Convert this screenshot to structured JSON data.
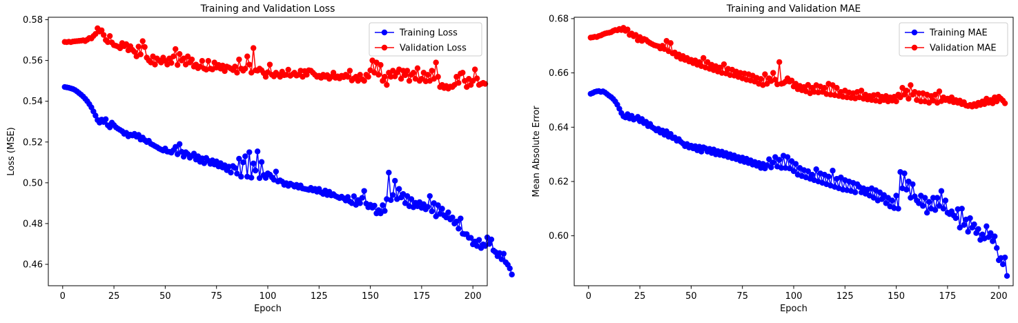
{
  "colors": {
    "train": "#0000ff",
    "val": "#ff0000",
    "axis": "#000000"
  },
  "chart_data": [
    {
      "type": "line",
      "title": "Training and Validation Loss",
      "xlabel": "Epoch",
      "ylabel": "Loss (MSE)",
      "xlim": [
        -7,
        207
      ],
      "ylim": [
        0.4495,
        0.5812
      ],
      "xticks": [
        0,
        25,
        50,
        75,
        100,
        125,
        150,
        175,
        200
      ],
      "xtick_labels": [
        "0",
        "25",
        "50",
        "75",
        "100",
        "125",
        "150",
        "175",
        "200"
      ],
      "yticks": [
        0.46,
        0.48,
        0.5,
        0.52,
        0.54,
        0.56,
        0.58
      ],
      "ytick_labels": [
        "0.46",
        "0.48",
        "0.50",
        "0.52",
        "0.54",
        "0.56",
        "0.58"
      ],
      "grid": false,
      "legend_position": "top-right",
      "series": [
        {
          "name": "Training Loss",
          "color": "#0000ff",
          "x_start": 1,
          "y": [
            0.547,
            0.5468,
            0.5466,
            0.5463,
            0.546,
            0.5455,
            0.5448,
            0.544,
            0.5432,
            0.5423,
            0.5412,
            0.54,
            0.5386,
            0.537,
            0.535,
            0.533,
            0.5308,
            0.5295,
            0.531,
            0.5298,
            0.5312,
            0.5282,
            0.5272,
            0.5295,
            0.5283,
            0.5272,
            0.5265,
            0.5259,
            0.5253,
            0.524,
            0.5245,
            0.5228,
            0.5236,
            0.5232,
            0.524,
            0.5226,
            0.5235,
            0.5212,
            0.5222,
            0.5209,
            0.52,
            0.5206,
            0.5191,
            0.5186,
            0.518,
            0.5175,
            0.5168,
            0.5163,
            0.5158,
            0.5168,
            0.5153,
            0.5152,
            0.5148,
            0.516,
            0.5176,
            0.514,
            0.519,
            0.5152,
            0.5128,
            0.515,
            0.5141,
            0.5123,
            0.5132,
            0.5143,
            0.5114,
            0.513,
            0.5103,
            0.512,
            0.5096,
            0.5122,
            0.5108,
            0.5093,
            0.511,
            0.509,
            0.5105,
            0.508,
            0.5096,
            0.5075,
            0.5086,
            0.5062,
            0.5079,
            0.505,
            0.5082,
            0.5073,
            0.5045,
            0.5118,
            0.503,
            0.51,
            0.513,
            0.503,
            0.515,
            0.5025,
            0.5095,
            0.506,
            0.5154,
            0.5023,
            0.5102,
            0.5038,
            0.5024,
            0.5046,
            0.504,
            0.5027,
            0.5015,
            0.5055,
            0.5006,
            0.5012,
            0.5006,
            0.499,
            0.4998,
            0.4985,
            0.4996,
            0.499,
            0.4981,
            0.499,
            0.4976,
            0.4987,
            0.4972,
            0.497,
            0.4968,
            0.4965,
            0.4975,
            0.4962,
            0.497,
            0.4956,
            0.497,
            0.4953,
            0.4945,
            0.4962,
            0.494,
            0.4956,
            0.4938,
            0.4944,
            0.4935,
            0.493,
            0.4925,
            0.4932,
            0.4924,
            0.4913,
            0.493,
            0.4908,
            0.49,
            0.4934,
            0.4892,
            0.4915,
            0.49,
            0.4926,
            0.496,
            0.4898,
            0.488,
            0.4892,
            0.4878,
            0.4888,
            0.485,
            0.4866,
            0.485,
            0.489,
            0.4862,
            0.492,
            0.505,
            0.4915,
            0.494,
            0.501,
            0.492,
            0.497,
            0.4928,
            0.4945,
            0.49,
            0.4935,
            0.4885,
            0.492,
            0.488,
            0.4902,
            0.4885,
            0.4905,
            0.4877,
            0.4895,
            0.487,
            0.4882,
            0.4935,
            0.486,
            0.49,
            0.4835,
            0.489,
            0.4848,
            0.4873,
            0.484,
            0.483,
            0.4855,
            0.482,
            0.483,
            0.48,
            0.481,
            0.4775,
            0.4825,
            0.475,
            0.4748,
            0.4748,
            0.473,
            0.473,
            0.4698,
            0.4712,
            0.469,
            0.472,
            0.468,
            0.4698,
            0.469,
            0.4732,
            0.47,
            0.4722,
            0.4668,
            0.466,
            0.464,
            0.4655,
            0.4625,
            0.4652,
            0.461,
            0.4598,
            0.458,
            0.455
          ]
        },
        {
          "name": "Validation Loss",
          "color": "#ff0000",
          "x_start": 1,
          "y": [
            0.5691,
            0.569,
            0.5692,
            0.569,
            0.5693,
            0.5694,
            0.5695,
            0.5696,
            0.5697,
            0.5699,
            0.5695,
            0.5702,
            0.571,
            0.5708,
            0.572,
            0.573,
            0.5758,
            0.5742,
            0.5748,
            0.5725,
            0.57,
            0.569,
            0.572,
            0.5688,
            0.5675,
            0.5672,
            0.5668,
            0.566,
            0.5685,
            0.567,
            0.568,
            0.565,
            0.567,
            0.5652,
            0.5642,
            0.562,
            0.5668,
            0.563,
            0.5695,
            0.5666,
            0.5614,
            0.56,
            0.559,
            0.562,
            0.558,
            0.561,
            0.56,
            0.559,
            0.5614,
            0.5598,
            0.558,
            0.561,
            0.5588,
            0.562,
            0.5656,
            0.5578,
            0.5632,
            0.56,
            0.561,
            0.558,
            0.562,
            0.559,
            0.5605,
            0.557,
            0.558,
            0.5562,
            0.557,
            0.5598,
            0.556,
            0.5555,
            0.5598,
            0.556,
            0.5556,
            0.559,
            0.5565,
            0.5578,
            0.556,
            0.5575,
            0.5548,
            0.557,
            0.5566,
            0.556,
            0.5553,
            0.557,
            0.554,
            0.5605,
            0.556,
            0.555,
            0.556,
            0.562,
            0.558,
            0.554,
            0.5661,
            0.5552,
            0.555,
            0.556,
            0.5552,
            0.5538,
            0.552,
            0.5542,
            0.558,
            0.553,
            0.5522,
            0.554,
            0.553,
            0.552,
            0.5545,
            0.5528,
            0.553,
            0.5555,
            0.5525,
            0.5532,
            0.554,
            0.5526,
            0.553,
            0.555,
            0.552,
            0.5548,
            0.553,
            0.5552,
            0.555,
            0.554,
            0.553,
            0.552,
            0.5525,
            0.5515,
            0.553,
            0.552,
            0.5528,
            0.551,
            0.552,
            0.554,
            0.5515,
            0.5522,
            0.5512,
            0.5525,
            0.5518,
            0.553,
            0.552,
            0.555,
            0.5502,
            0.5512,
            0.552,
            0.55,
            0.553,
            0.5508,
            0.55,
            0.553,
            0.552,
            0.5552,
            0.56,
            0.554,
            0.559,
            0.553,
            0.5578,
            0.55,
            0.552,
            0.548,
            0.554,
            0.552,
            0.555,
            0.5522,
            0.554,
            0.5556,
            0.551,
            0.555,
            0.5528,
            0.555,
            0.55,
            0.553,
            0.554,
            0.551,
            0.5562,
            0.55,
            0.551,
            0.554,
            0.5498,
            0.553,
            0.55,
            0.555,
            0.551,
            0.559,
            0.552,
            0.547,
            0.548,
            0.5465,
            0.5475,
            0.5462,
            0.5472,
            0.547,
            0.548,
            0.552,
            0.549,
            0.5536,
            0.554,
            0.55,
            0.547,
            0.551,
            0.548,
            0.55,
            0.5556,
            0.5512,
            0.548,
            0.5485,
            0.549,
            0.5485
          ]
        }
      ]
    },
    {
      "type": "line",
      "title": "Training and Validation MAE",
      "xlabel": "Epoch",
      "ylabel": "Mean Absolute Error",
      "xlim": [
        -7,
        207
      ],
      "ylim": [
        0.5816,
        0.6805
      ],
      "xticks": [
        0,
        25,
        50,
        75,
        100,
        125,
        150,
        175,
        200
      ],
      "xtick_labels": [
        "0",
        "25",
        "50",
        "75",
        "100",
        "125",
        "150",
        "175",
        "200"
      ],
      "yticks": [
        0.6,
        0.62,
        0.64,
        0.66,
        0.68
      ],
      "ytick_labels": [
        "0.60",
        "0.62",
        "0.64",
        "0.66",
        "0.68"
      ],
      "grid": false,
      "legend_position": "top-right",
      "series": [
        {
          "name": "Training MAE",
          "color": "#0000ff",
          "x_start": 1,
          "y": [
            0.6523,
            0.6526,
            0.653,
            0.6532,
            0.6533,
            0.653,
            0.6532,
            0.6528,
            0.6522,
            0.6516,
            0.6511,
            0.6504,
            0.6495,
            0.6483,
            0.6468,
            0.6452,
            0.644,
            0.6436,
            0.6448,
            0.6432,
            0.6442,
            0.6428,
            0.6432,
            0.6438,
            0.6422,
            0.643,
            0.6415,
            0.642,
            0.6404,
            0.6412,
            0.64,
            0.6395,
            0.6388,
            0.6394,
            0.638,
            0.6388,
            0.6372,
            0.6385,
            0.6365,
            0.6375,
            0.636,
            0.6362,
            0.635,
            0.6356,
            0.6346,
            0.634,
            0.633,
            0.6338,
            0.6325,
            0.6332,
            0.6322,
            0.633,
            0.6315,
            0.6328,
            0.631,
            0.6326,
            0.6322,
            0.631,
            0.632,
            0.6305,
            0.6318,
            0.63,
            0.6312,
            0.6298,
            0.631,
            0.6295,
            0.6305,
            0.629,
            0.63,
            0.6286,
            0.6296,
            0.6282,
            0.629,
            0.6276,
            0.6288,
            0.6272,
            0.6284,
            0.6268,
            0.6278,
            0.6262,
            0.6272,
            0.6258,
            0.6268,
            0.625,
            0.6265,
            0.6248,
            0.626,
            0.6282,
            0.6252,
            0.627,
            0.629,
            0.6255,
            0.628,
            0.625,
            0.6295,
            0.625,
            0.629,
            0.6248,
            0.6275,
            0.6238,
            0.6265,
            0.6225,
            0.625,
            0.622,
            0.6242,
            0.6215,
            0.6238,
            0.621,
            0.6225,
            0.6205,
            0.6245,
            0.62,
            0.623,
            0.6195,
            0.6225,
            0.619,
            0.6218,
            0.6185,
            0.624,
            0.618,
            0.621,
            0.6175,
            0.6215,
            0.617,
            0.6205,
            0.6168,
            0.62,
            0.6165,
            0.6195,
            0.616,
            0.619,
            0.618,
            0.616,
            0.6175,
            0.6155,
            0.617,
            0.6148,
            0.6175,
            0.614,
            0.6168,
            0.613,
            0.616,
            0.6135,
            0.615,
            0.612,
            0.614,
            0.6108,
            0.613,
            0.6102,
            0.6148,
            0.61,
            0.6235,
            0.6175,
            0.623,
            0.617,
            0.62,
            0.614,
            0.619,
            0.6145,
            0.613,
            0.612,
            0.6148,
            0.611,
            0.614,
            0.6085,
            0.6125,
            0.61,
            0.614,
            0.6095,
            0.614,
            0.611,
            0.6165,
            0.61,
            0.613,
            0.6085,
            0.608,
            0.609,
            0.6075,
            0.6065,
            0.6098,
            0.603,
            0.61,
            0.604,
            0.606,
            0.6015,
            0.6065,
            0.603,
            0.6042,
            0.601,
            0.6025,
            0.5985,
            0.6005,
            0.599,
            0.6035,
            0.5995,
            0.601,
            0.598,
            0.5998,
            0.5955,
            0.591,
            0.5918,
            0.5895,
            0.592,
            0.5852
          ]
        },
        {
          "name": "Validation MAE",
          "color": "#ff0000",
          "x_start": 1,
          "y": [
            0.673,
            0.6731,
            0.6733,
            0.6732,
            0.6736,
            0.6738,
            0.6742,
            0.6745,
            0.6747,
            0.6748,
            0.675,
            0.6755,
            0.6758,
            0.6757,
            0.6762,
            0.6758,
            0.6766,
            0.6755,
            0.676,
            0.674,
            0.6745,
            0.6735,
            0.674,
            0.672,
            0.6732,
            0.6718,
            0.6725,
            0.6722,
            0.6715,
            0.671,
            0.6706,
            0.6702,
            0.67,
            0.6698,
            0.669,
            0.67,
            0.6688,
            0.6718,
            0.668,
            0.671,
            0.6672,
            0.6675,
            0.666,
            0.6668,
            0.6652,
            0.6662,
            0.6648,
            0.6655,
            0.6642,
            0.6648,
            0.6636,
            0.6646,
            0.663,
            0.664,
            0.6625,
            0.6655,
            0.662,
            0.664,
            0.6615,
            0.663,
            0.661,
            0.6625,
            0.6605,
            0.662,
            0.66,
            0.6632,
            0.6598,
            0.6615,
            0.6592,
            0.6612,
            0.659,
            0.6605,
            0.6585,
            0.66,
            0.658,
            0.6598,
            0.6575,
            0.6595,
            0.6572,
            0.659,
            0.6568,
            0.6582,
            0.656,
            0.6578,
            0.6555,
            0.6595,
            0.656,
            0.658,
            0.657,
            0.66,
            0.6575,
            0.6558,
            0.664,
            0.656,
            0.6562,
            0.6568,
            0.658,
            0.6568,
            0.6572,
            0.655,
            0.656,
            0.654,
            0.6552,
            0.6536,
            0.6548,
            0.6532,
            0.6556,
            0.6525,
            0.6545,
            0.653,
            0.6555,
            0.6528,
            0.655,
            0.653,
            0.6545,
            0.6522,
            0.656,
            0.652,
            0.6555,
            0.6518,
            0.6545,
            0.6515,
            0.653,
            0.6512,
            0.6535,
            0.651,
            0.6528,
            0.6508,
            0.6525,
            0.6506,
            0.653,
            0.651,
            0.6535,
            0.6505,
            0.652,
            0.6502,
            0.6515,
            0.65,
            0.6518,
            0.6498,
            0.652,
            0.6495,
            0.6512,
            0.65,
            0.6515,
            0.6495,
            0.651,
            0.6498,
            0.6512,
            0.6495,
            0.652,
            0.651,
            0.6545,
            0.652,
            0.6535,
            0.6505,
            0.6555,
            0.652,
            0.653,
            0.65,
            0.6525,
            0.6495,
            0.6525,
            0.6495,
            0.652,
            0.649,
            0.6515,
            0.6498,
            0.652,
            0.649,
            0.6532,
            0.6496,
            0.651,
            0.65,
            0.6505,
            0.6496,
            0.651,
            0.6492,
            0.65,
            0.649,
            0.6498,
            0.6485,
            0.6492,
            0.648,
            0.6478,
            0.6482,
            0.6476,
            0.6485,
            0.6478,
            0.649,
            0.6482,
            0.6495,
            0.6485,
            0.6505,
            0.649,
            0.65,
            0.6488,
            0.651,
            0.6495,
            0.6512,
            0.6505,
            0.6498,
            0.6488
          ]
        }
      ]
    }
  ]
}
